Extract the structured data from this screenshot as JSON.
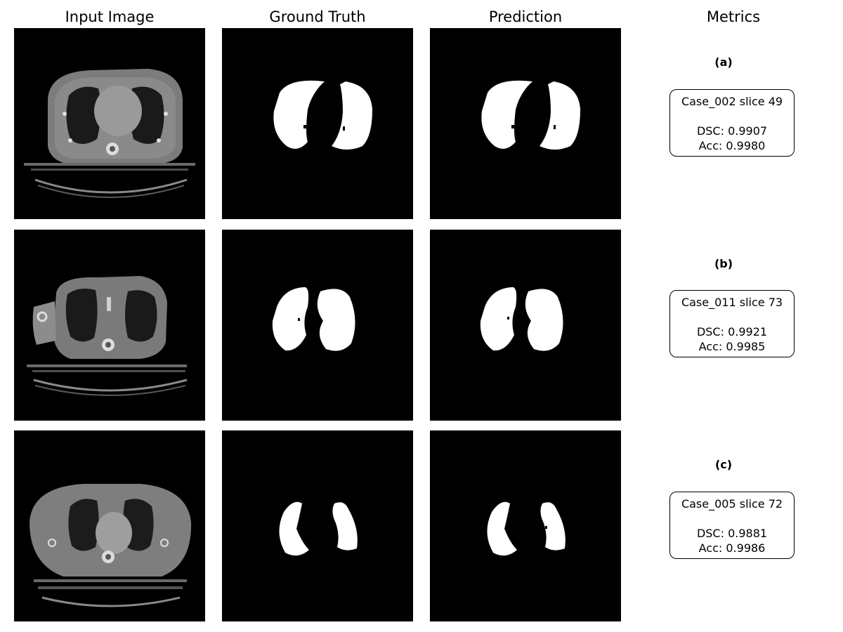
{
  "columns": {
    "input": "Input Image",
    "gt": "Ground Truth",
    "pred": "Prediction",
    "metrics": "Metrics"
  },
  "rows": [
    {
      "label": "(a)",
      "case": "Case_002 slice 49",
      "dsc": "DSC: 0.9907",
      "acc": "Acc: 0.9980"
    },
    {
      "label": "(b)",
      "case": "Case_011 slice 73",
      "dsc": "DSC: 0.9921",
      "acc": "Acc: 0.9985"
    },
    {
      "label": "(c)",
      "case": "Case_005 slice 72",
      "dsc": "DSC: 0.9881",
      "acc": "Acc: 0.9986"
    }
  ]
}
